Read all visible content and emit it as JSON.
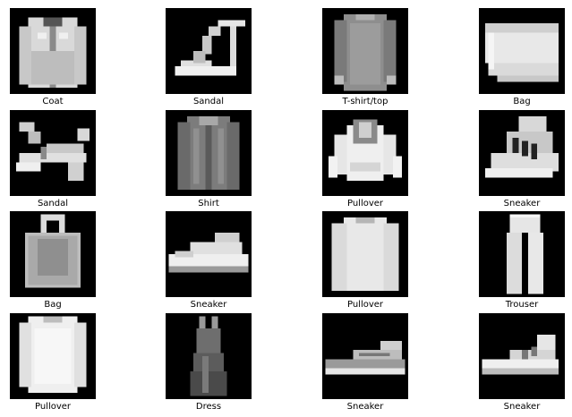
{
  "grid": {
    "items": [
      {
        "label": "Coat",
        "icon": "coat-icon"
      },
      {
        "label": "Sandal",
        "icon": "sandal-icon"
      },
      {
        "label": "T-shirt/top",
        "icon": "tshirt-icon"
      },
      {
        "label": "Bag",
        "icon": "bag-icon"
      },
      {
        "label": "Sandal",
        "icon": "sandal-icon"
      },
      {
        "label": "Shirt",
        "icon": "shirt-icon"
      },
      {
        "label": "Pullover",
        "icon": "pullover-icon"
      },
      {
        "label": "Sneaker",
        "icon": "sneaker-icon"
      },
      {
        "label": "Bag",
        "icon": "bag-icon"
      },
      {
        "label": "Sneaker",
        "icon": "sneaker-icon"
      },
      {
        "label": "Pullover",
        "icon": "pullover-icon"
      },
      {
        "label": "Trouser",
        "icon": "trouser-icon"
      },
      {
        "label": "Pullover",
        "icon": "pullover-icon"
      },
      {
        "label": "Dress",
        "icon": "dress-icon"
      },
      {
        "label": "Sneaker",
        "icon": "sneaker-icon"
      },
      {
        "label": "Sneaker",
        "icon": "sneaker-icon"
      }
    ]
  },
  "colors": {
    "tile_background": "#000000",
    "garment_light": "#e6e6e6",
    "garment_mid": "#9a9a9a",
    "caption_text": "#000000"
  }
}
